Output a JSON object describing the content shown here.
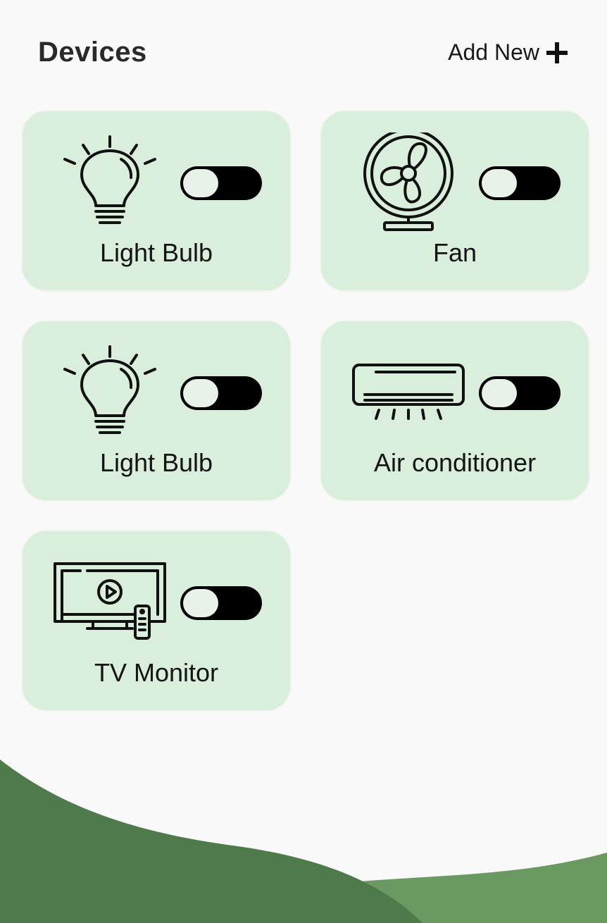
{
  "header": {
    "title": "Devices",
    "add_new_label": "Add New"
  },
  "devices": [
    {
      "label": "Light Bulb",
      "icon": "light-bulb-icon",
      "on": false
    },
    {
      "label": "Fan",
      "icon": "fan-icon",
      "on": false
    },
    {
      "label": "Light Bulb",
      "icon": "light-bulb-icon",
      "on": false
    },
    {
      "label": "Air conditioner",
      "icon": "air-conditioner-icon",
      "on": false
    },
    {
      "label": "TV Monitor",
      "icon": "tv-monitor-icon",
      "on": false
    }
  ],
  "colors": {
    "background": "#f9f9f9",
    "card": "#d9eedb",
    "toggle_track": "#000000",
    "toggle_knob": "#e9f2e9",
    "wave_dark": "#4e7a4c",
    "wave_light": "#6a9a62"
  }
}
